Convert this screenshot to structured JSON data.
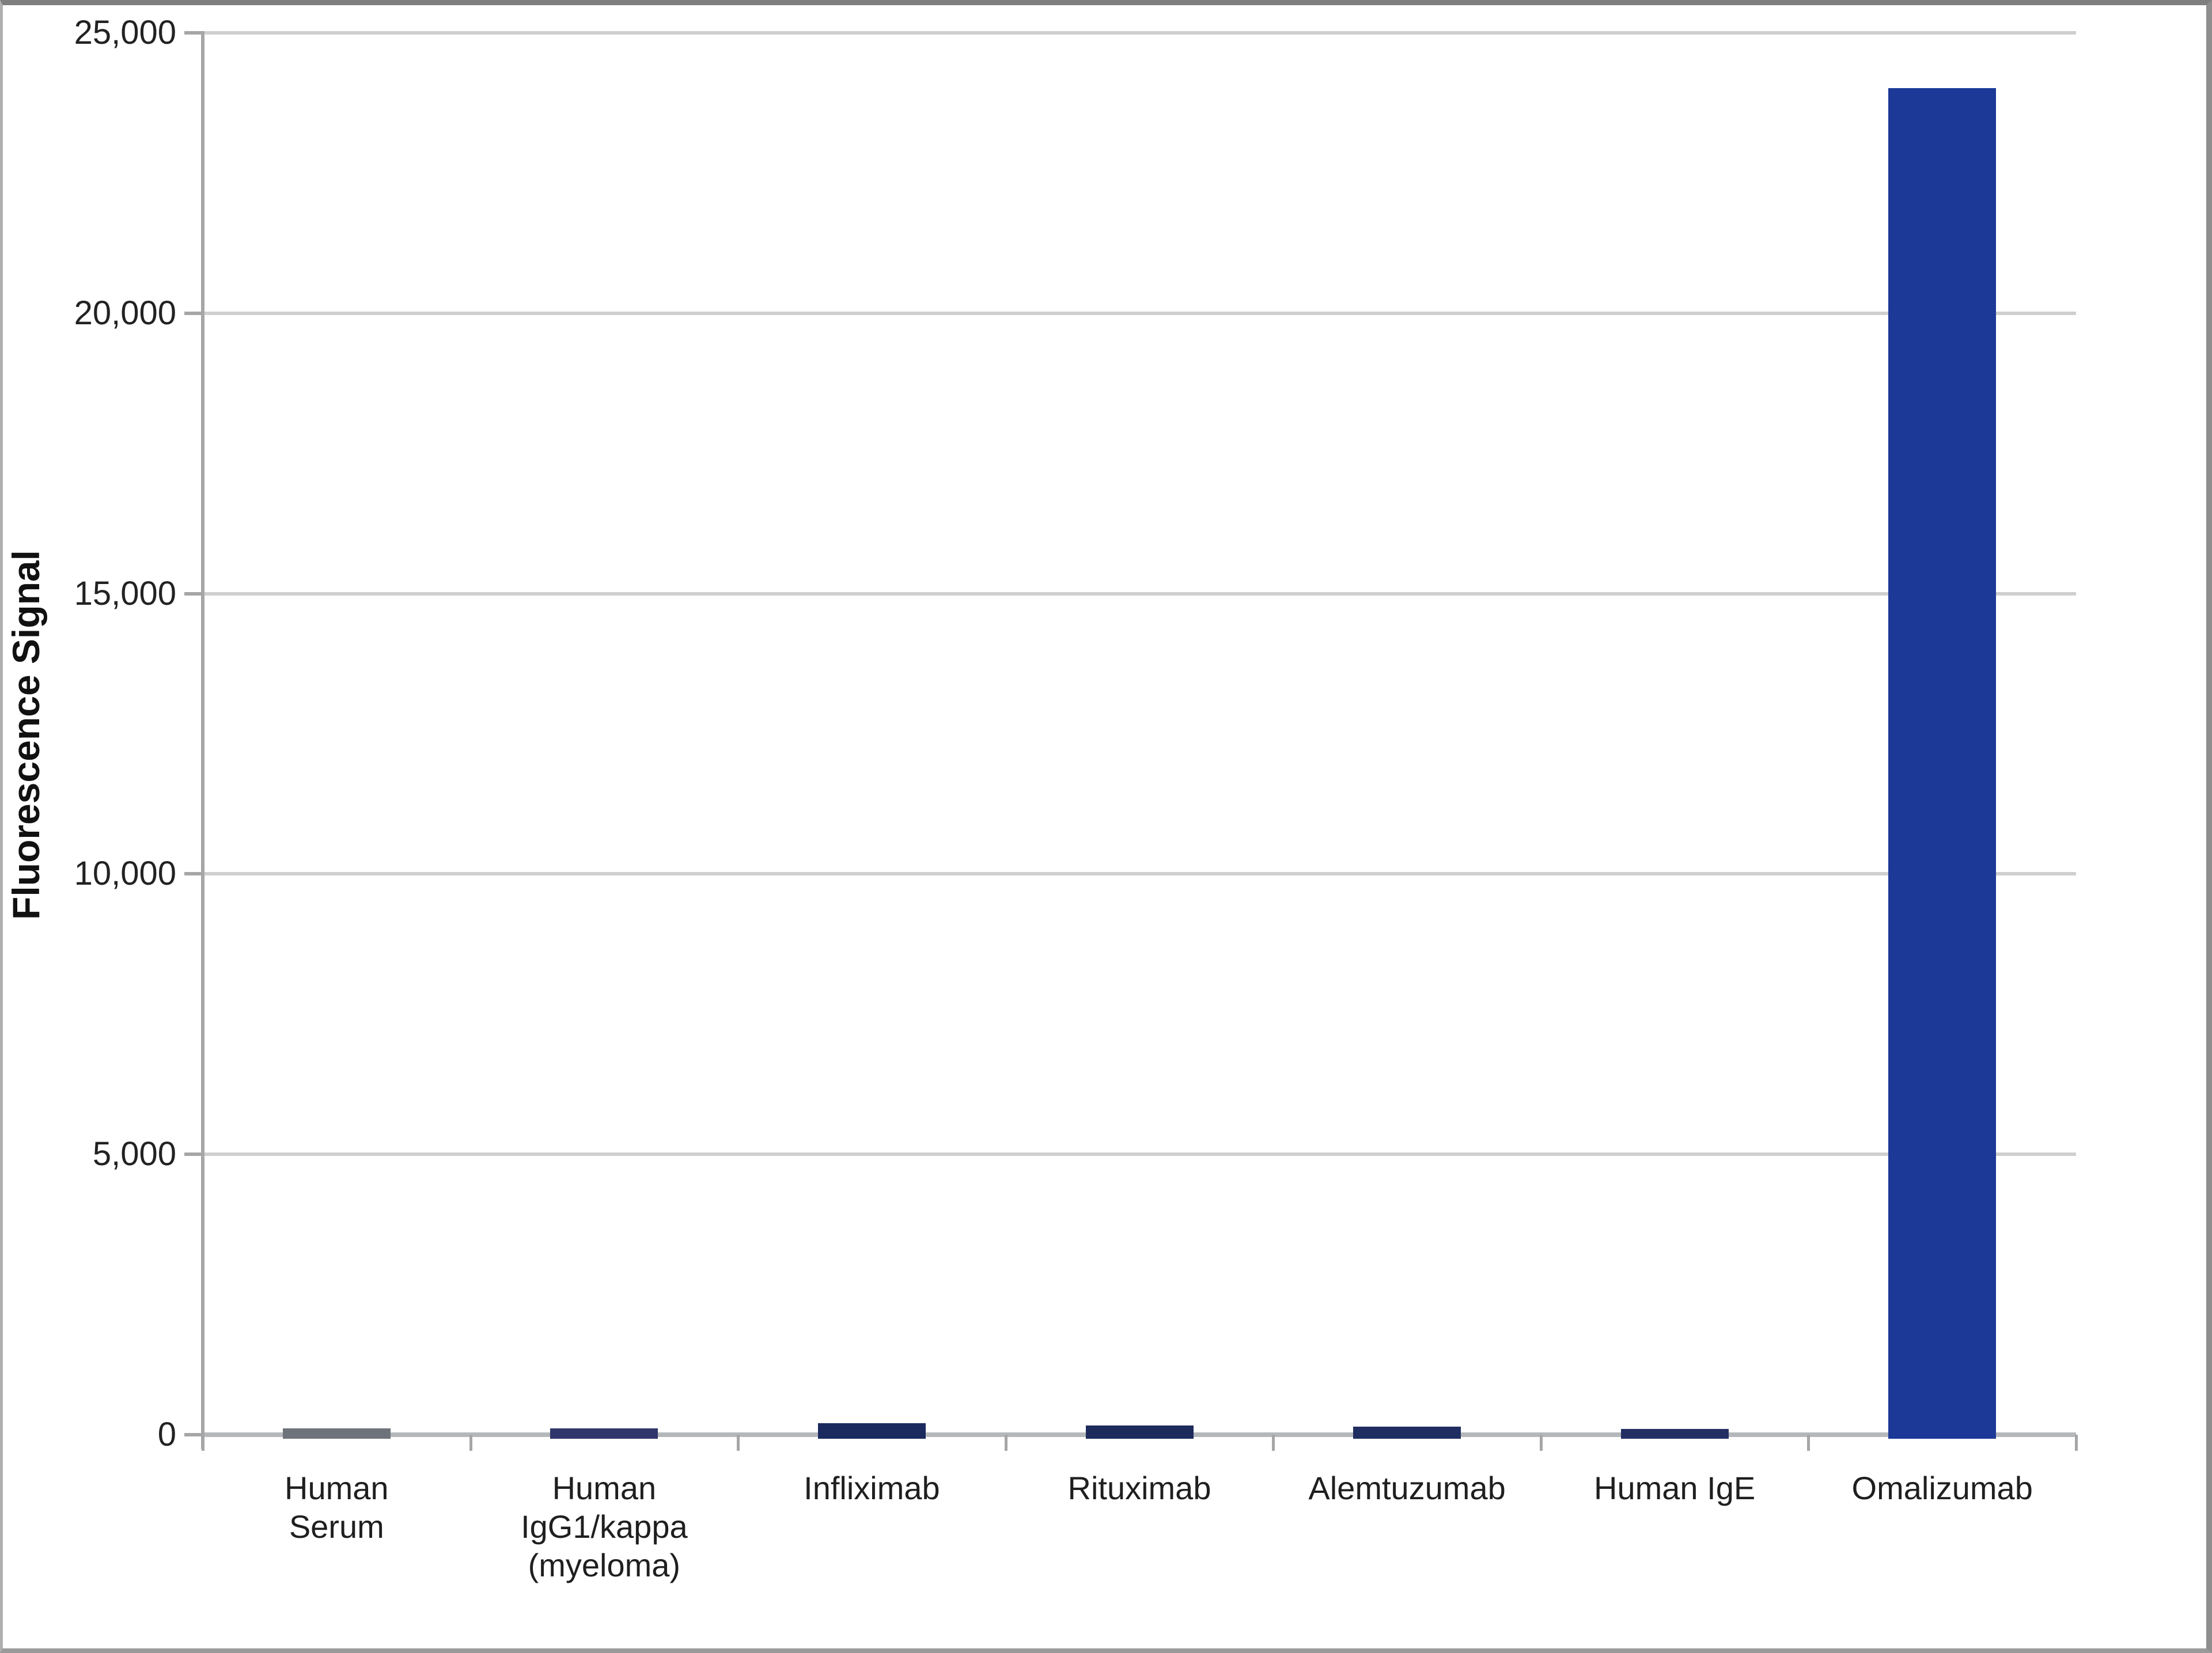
{
  "figure": {
    "background": "#ffffff",
    "border_color": "#8e8e8e"
  },
  "chart_data": {
    "type": "bar",
    "title": "",
    "xlabel": "",
    "ylabel": "Fluorescence Signal",
    "ylim": [
      0,
      25000
    ],
    "ytick_interval": 5000,
    "ytick_labels": [
      "0",
      "5,000",
      "10,000",
      "15,000",
      "20,000",
      "25,000"
    ],
    "grid": "horizontal-light-gray",
    "legend": "none",
    "categories": [
      "Human\nSerum",
      "Human\nIgG1/kappa\n(myeloma)",
      "Infliximab",
      "Rituximab",
      "Alemtuzumab",
      "Human IgE",
      "Omalizumab"
    ],
    "category_ids": [
      "human-serum",
      "human-igg1-kappa-myeloma",
      "infliximab",
      "rituximab",
      "alemtuzumab",
      "human-ige",
      "omalizumab"
    ],
    "values": [
      100,
      100,
      200,
      150,
      130,
      90,
      24000
    ],
    "bar_colors": [
      "#6e727b",
      "#30356b",
      "#1a2a5e",
      "#1c2a5c",
      "#1f2d61",
      "#232f63",
      "#1c3998"
    ],
    "bar_color_main": "#1c3998",
    "gridline_color": "#cfcfcf",
    "axis_color": "#a6a6a6"
  }
}
